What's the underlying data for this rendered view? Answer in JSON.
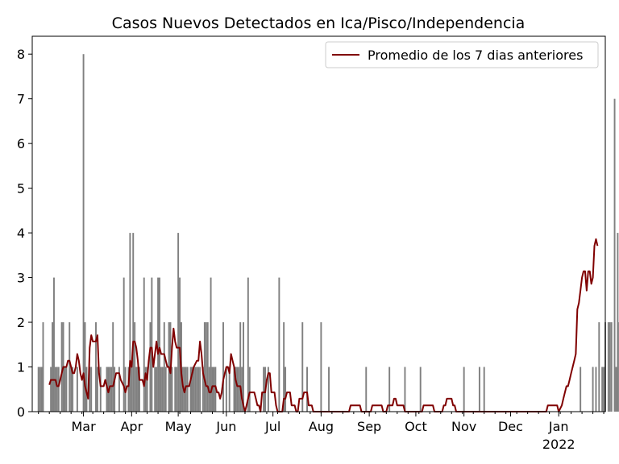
{
  "chart_data": {
    "type": "bar",
    "title": "Casos Nuevos Detectados en Ica/Pisco/Independencia",
    "xlabel": "",
    "ylabel": "",
    "grid": false,
    "legend_position": "top-right",
    "y_ticks": [
      0,
      1,
      2,
      3,
      4,
      5,
      6,
      7,
      8
    ],
    "ylim": [
      0,
      8.4
    ],
    "x_ticks": [
      {
        "label": "Mar",
        "day": 29
      },
      {
        "label": "Apr",
        "day": 60
      },
      {
        "label": "May",
        "day": 90
      },
      {
        "label": "Jun",
        "day": 121
      },
      {
        "label": "Jul",
        "day": 151
      },
      {
        "label": "Aug",
        "day": 182
      },
      {
        "label": "Sep",
        "day": 213
      },
      {
        "label": "Oct",
        "day": 243
      },
      {
        "label": "Nov",
        "day": 274
      },
      {
        "label": "Dec",
        "day": 304
      },
      {
        "label": "Jan",
        "day": 335,
        "sublabel": "2022"
      }
    ],
    "x_unit": "days since 2021-02-01",
    "xlim": [
      -4,
      365
    ],
    "colors": {
      "bars": "#808080",
      "line": "#800000"
    },
    "series": [
      {
        "kind": "bar",
        "values": [
          1,
          1,
          1,
          2,
          0,
          0,
          0,
          0,
          1,
          2,
          3,
          1,
          1,
          1,
          0,
          2,
          2,
          1,
          1,
          0,
          2,
          1,
          1,
          0,
          0,
          1,
          0,
          0,
          0,
          8,
          2,
          1,
          0,
          1,
          1,
          0,
          0,
          2,
          1,
          0,
          1,
          0,
          0,
          0,
          1,
          1,
          1,
          1,
          2,
          1,
          0,
          0,
          1,
          0,
          0,
          3,
          1,
          0,
          1,
          4,
          1,
          4,
          2,
          1,
          1,
          1,
          0,
          0,
          3,
          1,
          1,
          0,
          2,
          3,
          0,
          1,
          1,
          3,
          3,
          1,
          1,
          2,
          1,
          0,
          2,
          2,
          1,
          0,
          1,
          1,
          4,
          3,
          2,
          1,
          1,
          1,
          1,
          0,
          1,
          1,
          1,
          1,
          1,
          1,
          1,
          0,
          1,
          2,
          2,
          2,
          1,
          3,
          1,
          1,
          1,
          0,
          0,
          0,
          0,
          2,
          0,
          1,
          0,
          1,
          0,
          0,
          1,
          1,
          1,
          1,
          2,
          1,
          2,
          0,
          0,
          3,
          1,
          0,
          0,
          0,
          0,
          0,
          0,
          0,
          0,
          1,
          1,
          0,
          1,
          0,
          0,
          0,
          0,
          0,
          0,
          3,
          0,
          0,
          2,
          1,
          0,
          0,
          0,
          0,
          0,
          0,
          0,
          0,
          0,
          0,
          2,
          0,
          0,
          1,
          0,
          0,
          0,
          0,
          0,
          0,
          0,
          0,
          2,
          0,
          0,
          0,
          0,
          1,
          0,
          0,
          0,
          0,
          0,
          0,
          0,
          0,
          0,
          0,
          0,
          0,
          0,
          0,
          0,
          0,
          0,
          0,
          0,
          0,
          0,
          0,
          0,
          1,
          0,
          0,
          0,
          0,
          0,
          0,
          0,
          0,
          0,
          0,
          0,
          0,
          0,
          0,
          1,
          0,
          0,
          0,
          0,
          0,
          0,
          0,
          0,
          0,
          1,
          0,
          0,
          0,
          0,
          0,
          0,
          0,
          0,
          0,
          1,
          0,
          0,
          0,
          0,
          0,
          0,
          0,
          0,
          0,
          0,
          0,
          0,
          0,
          0,
          0,
          0,
          0,
          0,
          0,
          0,
          0,
          0,
          0,
          0,
          0,
          0,
          0,
          1,
          0,
          0,
          0,
          0,
          0,
          0,
          0,
          0,
          0,
          1,
          0,
          0,
          1,
          0,
          0,
          0,
          0,
          0,
          0,
          0,
          0,
          0,
          0,
          0,
          0,
          0,
          0,
          0,
          0,
          0,
          0,
          0,
          0,
          0,
          0,
          0,
          0,
          0,
          0,
          0,
          0,
          0,
          0,
          0,
          0,
          0,
          0,
          0,
          0,
          0,
          0,
          0,
          0,
          0,
          0,
          0,
          0,
          0,
          0,
          0,
          0,
          0,
          0,
          0,
          0,
          0,
          0,
          0,
          0,
          0,
          0,
          0,
          0,
          0,
          1,
          0,
          0,
          0,
          0,
          0,
          0,
          0,
          1,
          0,
          1,
          0,
          2,
          0,
          1,
          1,
          2,
          0,
          2,
          2,
          2,
          0,
          7,
          1,
          4,
          2,
          2,
          1,
          4,
          5,
          4,
          1,
          1,
          4,
          7,
          2
        ]
      },
      {
        "kind": "line",
        "name": "Promedio de los 7 dias anteriores",
        "start_day": 7,
        "points": [
          [
            7,
            0.6
          ],
          [
            8,
            0.71
          ],
          [
            11,
            0.71
          ],
          [
            12,
            0.57
          ],
          [
            13,
            0.57
          ],
          [
            15,
            0.86
          ],
          [
            16,
            1.0
          ],
          [
            18,
            1.0
          ],
          [
            19,
            1.14
          ],
          [
            20,
            1.14
          ],
          [
            22,
            0.86
          ],
          [
            23,
            0.86
          ],
          [
            24,
            1.0
          ],
          [
            25,
            1.29
          ],
          [
            26,
            1.14
          ],
          [
            27,
            0.86
          ],
          [
            28,
            0.71
          ],
          [
            29,
            0.86
          ],
          [
            30,
            0.57
          ],
          [
            31,
            0.43
          ],
          [
            32,
            0.29
          ],
          [
            33,
            1.43
          ],
          [
            34,
            1.71
          ],
          [
            35,
            1.57
          ],
          [
            37,
            1.57
          ],
          [
            38,
            1.71
          ],
          [
            39,
            0.86
          ],
          [
            40,
            0.57
          ],
          [
            42,
            0.57
          ],
          [
            43,
            0.71
          ],
          [
            44,
            0.57
          ],
          [
            45,
            0.43
          ],
          [
            46,
            0.57
          ],
          [
            48,
            0.57
          ],
          [
            49,
            0.71
          ],
          [
            50,
            0.86
          ],
          [
            52,
            0.86
          ],
          [
            53,
            0.71
          ],
          [
            55,
            0.57
          ],
          [
            56,
            0.43
          ],
          [
            57,
            0.57
          ],
          [
            58,
            0.57
          ],
          [
            59,
            1.14
          ],
          [
            60,
            1.0
          ],
          [
            61,
            1.57
          ],
          [
            62,
            1.57
          ],
          [
            63,
            1.43
          ],
          [
            64,
            1.14
          ],
          [
            65,
            0.71
          ],
          [
            67,
            0.71
          ],
          [
            68,
            0.57
          ],
          [
            69,
            0.86
          ],
          [
            70,
            0.71
          ],
          [
            71,
            1.14
          ],
          [
            72,
            1.43
          ],
          [
            73,
            1.43
          ],
          [
            74,
            1.0
          ],
          [
            75,
            1.29
          ],
          [
            76,
            1.57
          ],
          [
            77,
            1.29
          ],
          [
            78,
            1.43
          ],
          [
            79,
            1.29
          ],
          [
            81,
            1.29
          ],
          [
            82,
            1.14
          ],
          [
            83,
            1.0
          ],
          [
            84,
            1.0
          ],
          [
            85,
            0.86
          ],
          [
            86,
            1.43
          ],
          [
            87,
            1.86
          ],
          [
            88,
            1.57
          ],
          [
            89,
            1.43
          ],
          [
            91,
            1.43
          ],
          [
            92,
            0.86
          ],
          [
            93,
            0.57
          ],
          [
            94,
            0.43
          ],
          [
            95,
            0.57
          ],
          [
            96,
            0.57
          ],
          [
            97,
            0.57
          ],
          [
            98,
            0.71
          ],
          [
            99,
            0.86
          ],
          [
            100,
            1.0
          ],
          [
            102,
            1.14
          ],
          [
            103,
            1.14
          ],
          [
            104,
            1.57
          ],
          [
            105,
            1.29
          ],
          [
            106,
            0.86
          ],
          [
            107,
            0.71
          ],
          [
            108,
            0.57
          ],
          [
            109,
            0.57
          ],
          [
            110,
            0.43
          ],
          [
            111,
            0.43
          ],
          [
            112,
            0.57
          ],
          [
            113,
            0.57
          ],
          [
            114,
            0.57
          ],
          [
            115,
            0.43
          ],
          [
            116,
            0.43
          ],
          [
            117,
            0.29
          ],
          [
            118,
            0.43
          ],
          [
            119,
            0.71
          ],
          [
            120,
            0.86
          ],
          [
            121,
            1.0
          ],
          [
            122,
            1.0
          ],
          [
            123,
            0.86
          ],
          [
            124,
            1.29
          ],
          [
            125,
            1.14
          ],
          [
            126,
            1.0
          ],
          [
            127,
            0.71
          ],
          [
            128,
            0.57
          ],
          [
            130,
            0.57
          ],
          [
            131,
            0.29
          ],
          [
            132,
            0.14
          ],
          [
            133,
            0.0
          ],
          [
            134,
            0.14
          ],
          [
            135,
            0.29
          ],
          [
            136,
            0.43
          ],
          [
            137,
            0.43
          ],
          [
            138,
            0.43
          ],
          [
            139,
            0.43
          ],
          [
            140,
            0.29
          ],
          [
            141,
            0.14
          ],
          [
            142,
            0.14
          ],
          [
            143,
            0.0
          ],
          [
            144,
            0.43
          ],
          [
            145,
            0.43
          ],
          [
            146,
            0.43
          ],
          [
            147,
            0.71
          ],
          [
            148,
            0.86
          ],
          [
            149,
            0.86
          ],
          [
            150,
            0.43
          ],
          [
            151,
            0.43
          ],
          [
            152,
            0.43
          ],
          [
            153,
            0.14
          ],
          [
            154,
            0.0
          ],
          [
            155,
            0.0
          ],
          [
            156,
            0.0
          ],
          [
            157,
            0.0
          ],
          [
            158,
            0.29
          ],
          [
            159,
            0.29
          ],
          [
            160,
            0.43
          ],
          [
            161,
            0.43
          ],
          [
            162,
            0.43
          ],
          [
            163,
            0.14
          ],
          [
            164,
            0.14
          ],
          [
            165,
            0.14
          ],
          [
            166,
            0.0
          ],
          [
            167,
            0.0
          ],
          [
            168,
            0.29
          ],
          [
            169,
            0.29
          ],
          [
            170,
            0.29
          ],
          [
            171,
            0.43
          ],
          [
            172,
            0.43
          ],
          [
            173,
            0.43
          ],
          [
            174,
            0.14
          ],
          [
            175,
            0.14
          ],
          [
            176,
            0.14
          ],
          [
            177,
            0.0
          ],
          [
            200,
            0.0
          ],
          [
            201,
            0.14
          ],
          [
            207,
            0.14
          ],
          [
            208,
            0.0
          ],
          [
            214,
            0.0
          ],
          [
            215,
            0.14
          ],
          [
            221,
            0.14
          ],
          [
            222,
            0.0
          ],
          [
            224,
            0.0
          ],
          [
            225,
            0.14
          ],
          [
            228,
            0.14
          ],
          [
            229,
            0.29
          ],
          [
            230,
            0.29
          ],
          [
            231,
            0.14
          ],
          [
            235,
            0.14
          ],
          [
            236,
            0.0
          ],
          [
            247,
            0.0
          ],
          [
            248,
            0.14
          ],
          [
            254,
            0.14
          ],
          [
            255,
            0.0
          ],
          [
            260,
            0.0
          ],
          [
            261,
            0.14
          ],
          [
            262,
            0.14
          ],
          [
            263,
            0.29
          ],
          [
            266,
            0.29
          ],
          [
            267,
            0.14
          ],
          [
            268,
            0.14
          ],
          [
            269,
            0.0
          ],
          [
            327,
            0.0
          ],
          [
            328,
            0.14
          ],
          [
            334,
            0.14
          ],
          [
            335,
            0.0
          ],
          [
            337,
            0.14
          ],
          [
            338,
            0.29
          ],
          [
            340,
            0.57
          ],
          [
            341,
            0.57
          ],
          [
            342,
            0.71
          ],
          [
            343,
            0.86
          ],
          [
            344,
            1.0
          ],
          [
            345,
            1.14
          ],
          [
            346,
            1.29
          ],
          [
            347,
            2.29
          ],
          [
            348,
            2.43
          ],
          [
            349,
            2.71
          ],
          [
            350,
            3.0
          ],
          [
            351,
            3.14
          ],
          [
            352,
            3.14
          ],
          [
            353,
            2.71
          ],
          [
            354,
            3.14
          ],
          [
            355,
            3.14
          ],
          [
            356,
            2.86
          ],
          [
            357,
            3.0
          ],
          [
            358,
            3.71
          ],
          [
            359,
            3.86
          ],
          [
            360,
            3.71
          ]
        ]
      }
    ]
  }
}
